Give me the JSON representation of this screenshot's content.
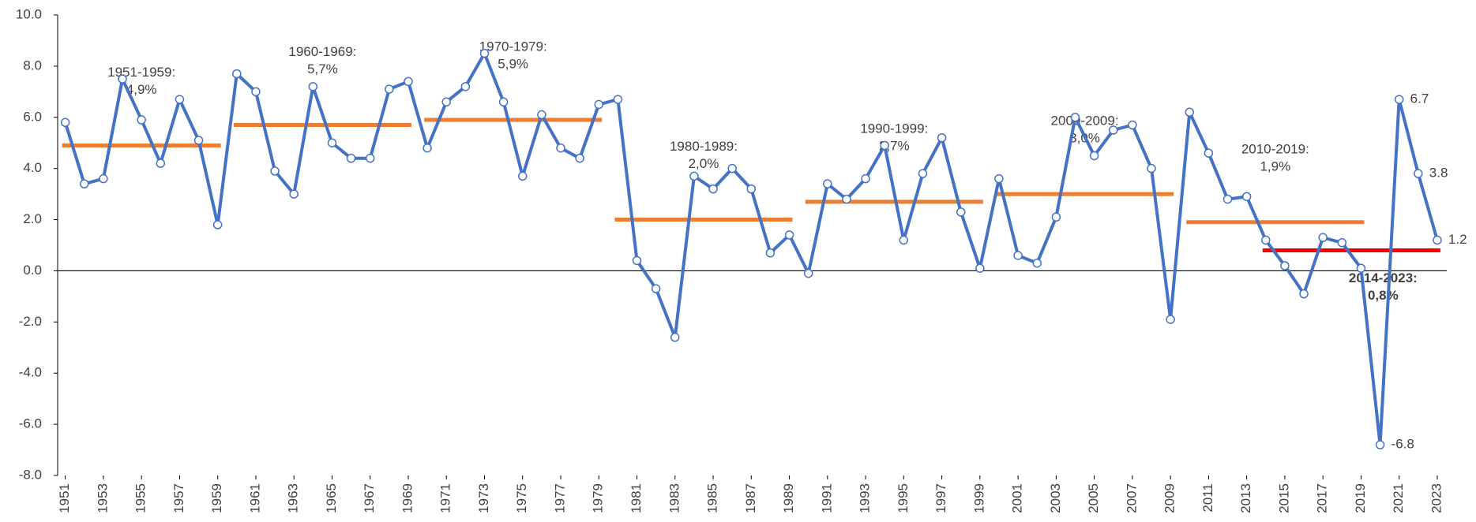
{
  "chart_data": {
    "type": "line",
    "x": [
      1951,
      1952,
      1953,
      1954,
      1955,
      1956,
      1957,
      1958,
      1959,
      1960,
      1961,
      1962,
      1963,
      1964,
      1965,
      1966,
      1967,
      1968,
      1969,
      1970,
      1971,
      1972,
      1973,
      1974,
      1975,
      1976,
      1977,
      1978,
      1979,
      1980,
      1981,
      1982,
      1983,
      1984,
      1985,
      1986,
      1987,
      1988,
      1989,
      1990,
      1991,
      1992,
      1993,
      1994,
      1995,
      1996,
      1997,
      1998,
      1999,
      2000,
      2001,
      2002,
      2003,
      2004,
      2005,
      2006,
      2007,
      2008,
      2009,
      2010,
      2011,
      2012,
      2013,
      2014,
      2015,
      2016,
      2017,
      2018,
      2019,
      2020,
      2021,
      2022,
      2023
    ],
    "series": [
      {
        "color": "#4472c4",
        "values": [
          5.8,
          3.4,
          3.6,
          7.5,
          5.9,
          4.2,
          6.7,
          5.1,
          1.8,
          7.7,
          7.0,
          3.9,
          3.0,
          7.2,
          5.0,
          4.4,
          4.4,
          7.1,
          7.4,
          4.8,
          6.6,
          7.2,
          8.5,
          6.6,
          3.7,
          6.1,
          4.8,
          4.4,
          6.5,
          6.7,
          0.4,
          -0.7,
          -2.6,
          3.7,
          3.2,
          4.0,
          3.2,
          0.7,
          1.4,
          -0.1,
          3.4,
          2.8,
          3.6,
          4.9,
          1.2,
          3.8,
          5.2,
          2.3,
          0.1,
          3.6,
          0.6,
          0.3,
          2.1,
          6.0,
          4.5,
          5.5,
          5.7,
          4.0,
          -1.9,
          6.2,
          4.6,
          2.8,
          2.9,
          1.2,
          0.2,
          -0.9,
          1.3,
          1.1,
          0.1,
          -6.8,
          6.7,
          3.8,
          1.2
        ],
        "value_labels": [
          null,
          null,
          null,
          null,
          null,
          null,
          null,
          null,
          null,
          null,
          null,
          null,
          null,
          null,
          null,
          null,
          null,
          null,
          null,
          null,
          null,
          null,
          null,
          null,
          null,
          null,
          null,
          null,
          null,
          null,
          null,
          null,
          null,
          null,
          null,
          null,
          null,
          null,
          null,
          null,
          null,
          null,
          null,
          null,
          null,
          null,
          null,
          null,
          null,
          null,
          null,
          null,
          null,
          null,
          null,
          null,
          null,
          null,
          null,
          null,
          null,
          null,
          null,
          null,
          null,
          null,
          null,
          null,
          null,
          "-6.8",
          "6.7",
          "3.8",
          "1.2"
        ]
      }
    ],
    "averages": [
      {
        "label": "1951-1959:",
        "value": 4.9,
        "value_label": "4,9%",
        "start": 1951,
        "end": 1959,
        "color": "#ed7d31"
      },
      {
        "label": "1960-1969:",
        "value": 5.7,
        "value_label": "5,7%",
        "start": 1960,
        "end": 1969,
        "color": "#ed7d31"
      },
      {
        "label": "1970-1979:",
        "value": 5.9,
        "value_label": "5,9%",
        "start": 1970,
        "end": 1979,
        "color": "#ed7d31"
      },
      {
        "label": "1980-1989:",
        "value": 2.0,
        "value_label": "2,0%",
        "start": 1980,
        "end": 1989,
        "color": "#ed7d31"
      },
      {
        "label": "1990-1999:",
        "value": 2.7,
        "value_label": "2,7%",
        "start": 1990,
        "end": 1999,
        "color": "#ed7d31"
      },
      {
        "label": "2000-2009:",
        "value": 3.0,
        "value_label": "3,0%",
        "start": 2000,
        "end": 2009,
        "color": "#ed7d31"
      },
      {
        "label": "2010-2019:",
        "value": 1.9,
        "value_label": "1,9%",
        "start": 2010,
        "end": 2019,
        "color": "#ed7d31"
      },
      {
        "label": "2014-2023:",
        "value": 0.8,
        "value_label": "0,8%",
        "start": 2014,
        "end": 2023,
        "color": "#ff0000"
      }
    ],
    "xlim": [
      1950.6,
      2023.5
    ],
    "xticks": [
      1951,
      1953,
      1955,
      1957,
      1959,
      1961,
      1963,
      1965,
      1967,
      1969,
      1971,
      1973,
      1975,
      1977,
      1979,
      1981,
      1983,
      1985,
      1987,
      1989,
      1991,
      1993,
      1995,
      1997,
      1999,
      2001,
      2003,
      2005,
      2007,
      2009,
      2011,
      2013,
      2015,
      2017,
      2019,
      2021,
      2023
    ],
    "ylim": [
      -8,
      10
    ],
    "yticks": [
      {
        "value": -8,
        "label": "-8.0"
      },
      {
        "value": -6,
        "label": "-6.0"
      },
      {
        "value": -4,
        "label": "-4.0"
      },
      {
        "value": -2,
        "label": "-2.0"
      },
      {
        "value": 0,
        "label": "0.0"
      },
      {
        "value": 2,
        "label": "2.0"
      },
      {
        "value": 4,
        "label": "4.0"
      },
      {
        "value": 6,
        "label": "6.0"
      },
      {
        "value": 8,
        "label": "8.0"
      },
      {
        "value": 10,
        "label": "10.0"
      }
    ]
  }
}
